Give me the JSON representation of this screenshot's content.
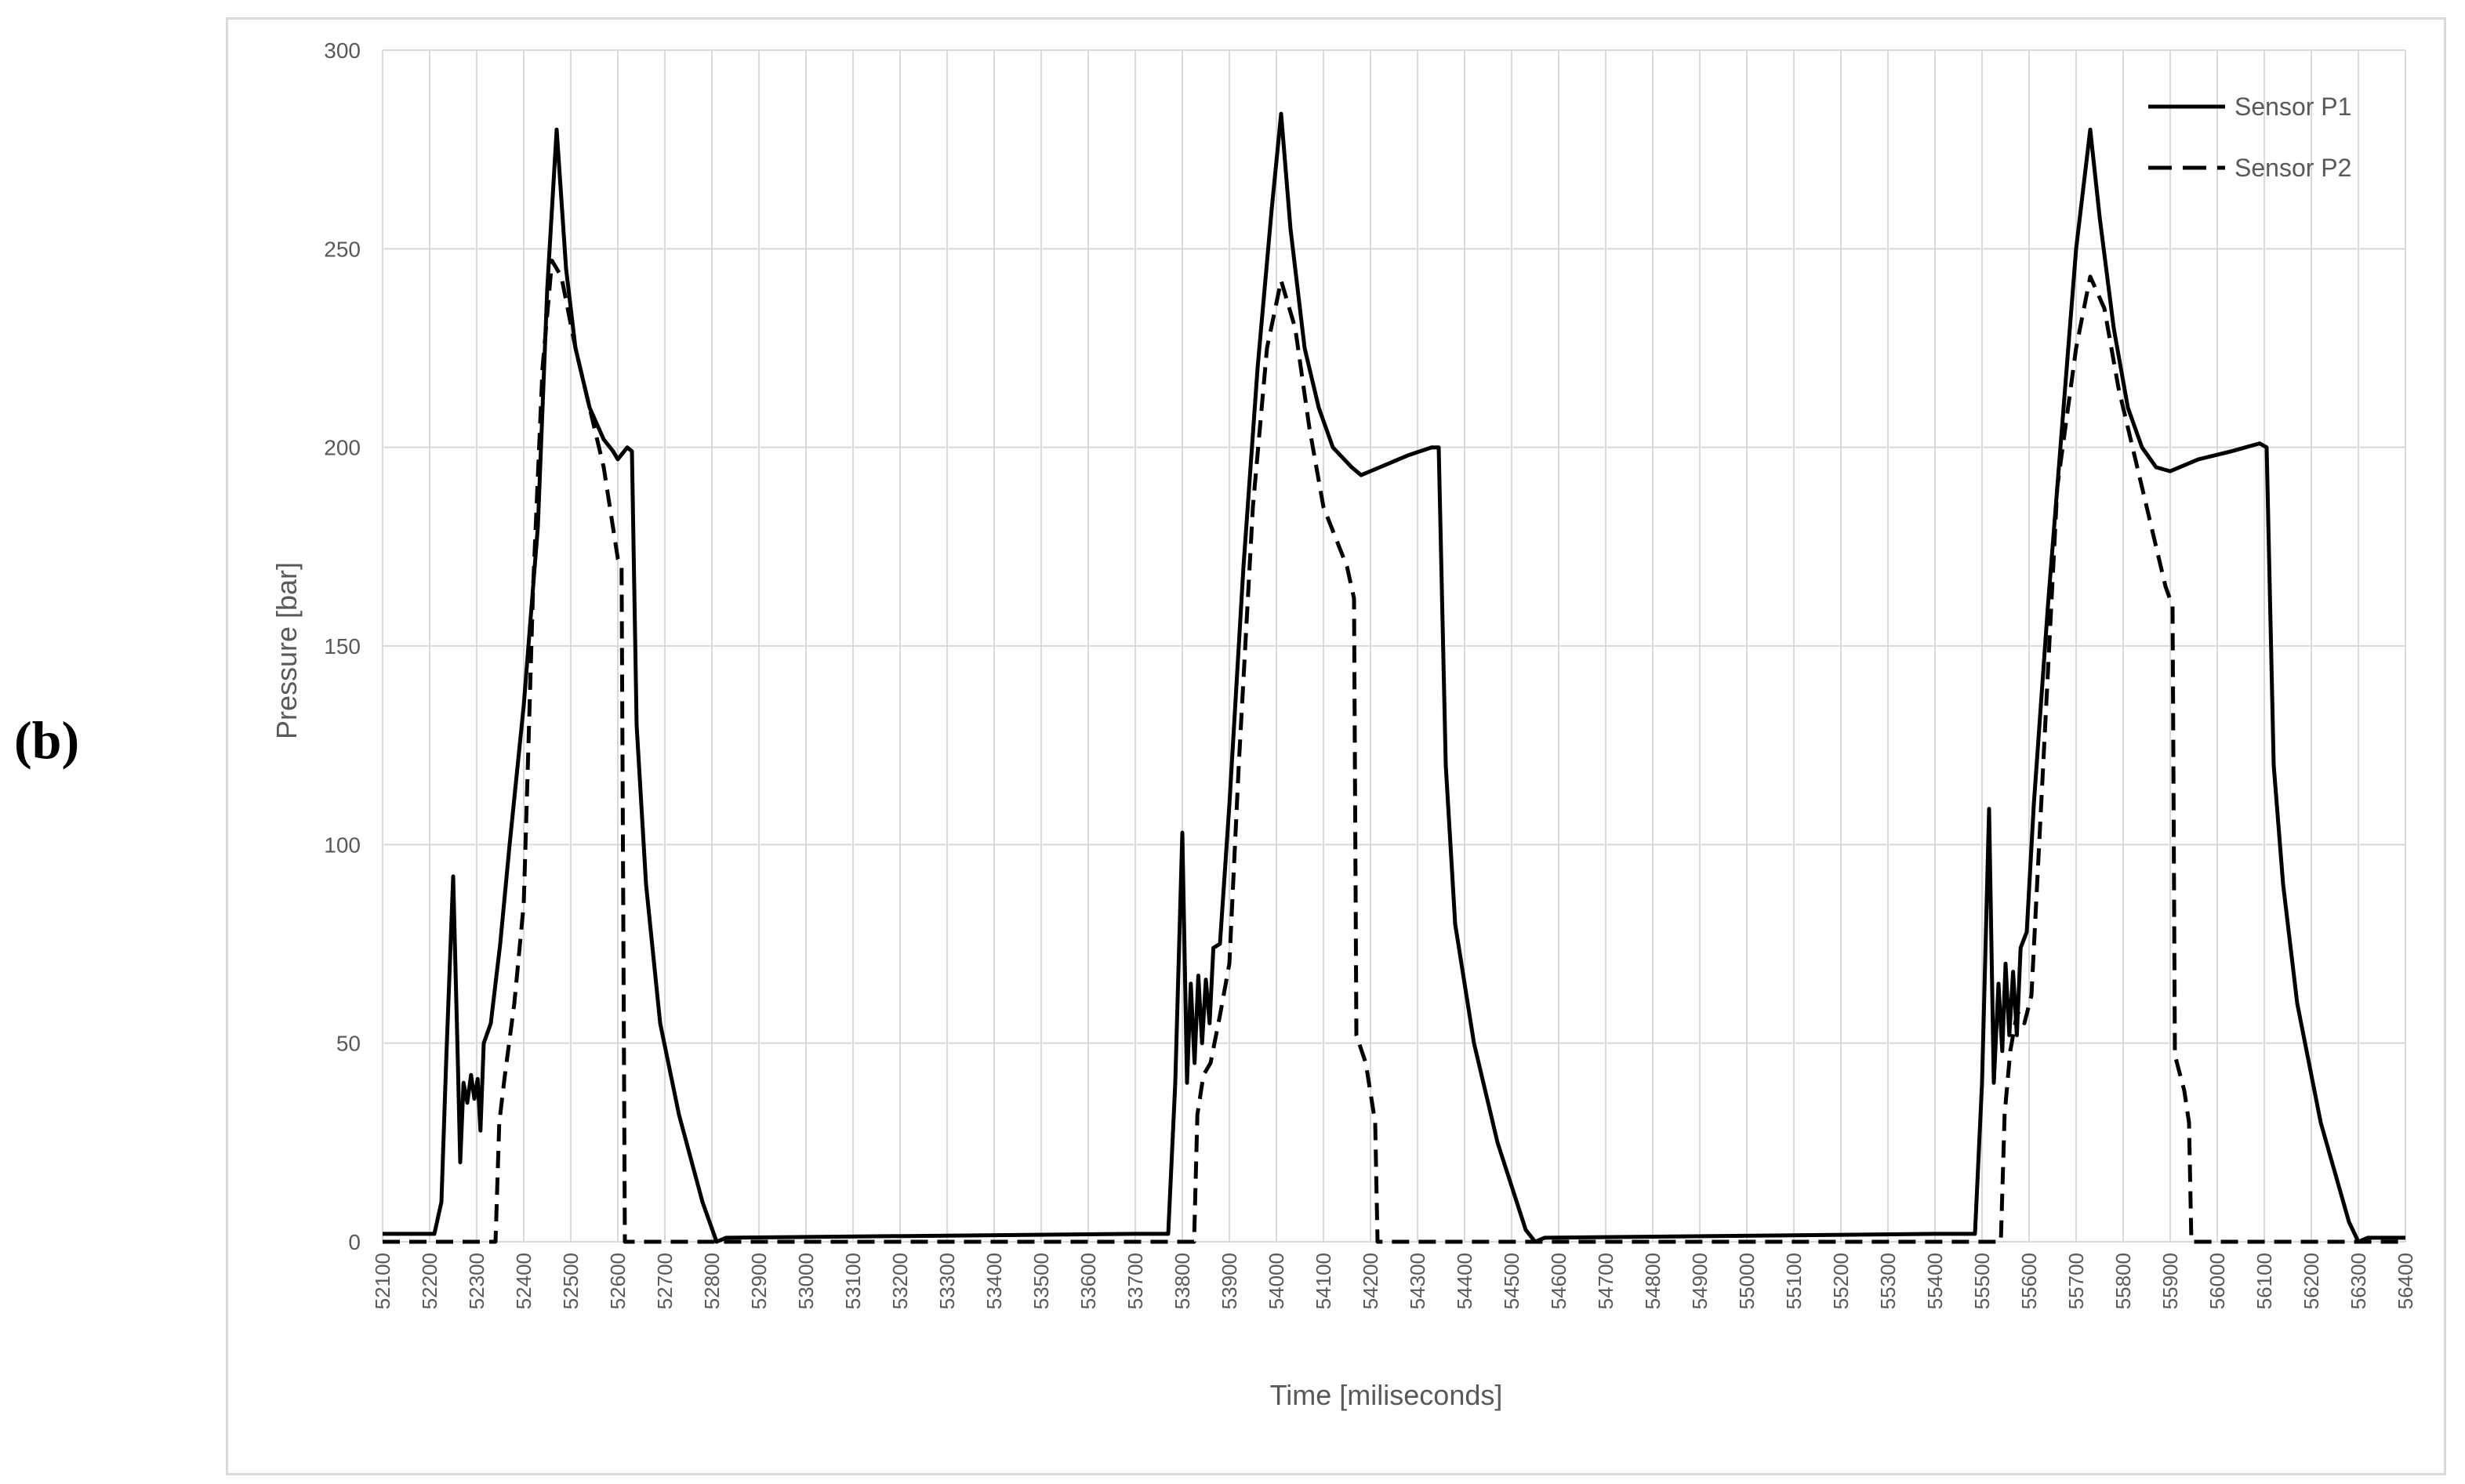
{
  "panel_label": "(b)",
  "chart_data": {
    "type": "line",
    "xlabel": "Time [miliseconds]",
    "ylabel": "Pressure [bar]",
    "xlim": [
      52100,
      56400
    ],
    "ylim": [
      0,
      300
    ],
    "yticks": [
      0,
      50,
      100,
      150,
      200,
      250,
      300
    ],
    "xticks": [
      52100,
      52200,
      52300,
      52400,
      52500,
      52600,
      52700,
      52800,
      52900,
      53000,
      53100,
      53200,
      53300,
      53400,
      53500,
      53600,
      53700,
      53800,
      53900,
      54000,
      54100,
      54200,
      54300,
      54400,
      54500,
      54600,
      54700,
      54800,
      54900,
      55000,
      55100,
      55200,
      55300,
      55400,
      55500,
      55600,
      55700,
      55800,
      55900,
      56000,
      56100,
      56200,
      56300,
      56400
    ],
    "grid": true,
    "legend_position": "top-right",
    "series": [
      {
        "name": "Sensor P1",
        "style": "solid",
        "color": "#000000",
        "points": [
          [
            52100,
            2
          ],
          [
            52210,
            2
          ],
          [
            52225,
            10
          ],
          [
            52235,
            45
          ],
          [
            52250,
            92
          ],
          [
            52260,
            45
          ],
          [
            52265,
            20
          ],
          [
            52272,
            40
          ],
          [
            52280,
            35
          ],
          [
            52288,
            42
          ],
          [
            52295,
            36
          ],
          [
            52302,
            41
          ],
          [
            52308,
            28
          ],
          [
            52315,
            50
          ],
          [
            52330,
            55
          ],
          [
            52350,
            75
          ],
          [
            52370,
            100
          ],
          [
            52400,
            135
          ],
          [
            52430,
            180
          ],
          [
            52450,
            240
          ],
          [
            52470,
            280
          ],
          [
            52490,
            245
          ],
          [
            52510,
            225
          ],
          [
            52540,
            210
          ],
          [
            52570,
            202
          ],
          [
            52590,
            199
          ],
          [
            52600,
            197
          ],
          [
            52620,
            200
          ],
          [
            52630,
            199
          ],
          [
            52640,
            130
          ],
          [
            52660,
            90
          ],
          [
            52690,
            55
          ],
          [
            52730,
            32
          ],
          [
            52780,
            10
          ],
          [
            52810,
            0
          ],
          [
            52830,
            1
          ],
          [
            53700,
            2
          ],
          [
            53770,
            2
          ],
          [
            53785,
            40
          ],
          [
            53800,
            103
          ],
          [
            53810,
            40
          ],
          [
            53818,
            65
          ],
          [
            53826,
            45
          ],
          [
            53834,
            67
          ],
          [
            53842,
            50
          ],
          [
            53850,
            66
          ],
          [
            53858,
            55
          ],
          [
            53866,
            74
          ],
          [
            53880,
            75
          ],
          [
            53900,
            110
          ],
          [
            53930,
            170
          ],
          [
            53960,
            220
          ],
          [
            53990,
            260
          ],
          [
            54010,
            284
          ],
          [
            54030,
            255
          ],
          [
            54060,
            225
          ],
          [
            54090,
            210
          ],
          [
            54120,
            200
          ],
          [
            54160,
            195
          ],
          [
            54180,
            193
          ],
          [
            54220,
            195
          ],
          [
            54280,
            198
          ],
          [
            54330,
            200
          ],
          [
            54345,
            200
          ],
          [
            54360,
            120
          ],
          [
            54380,
            80
          ],
          [
            54420,
            50
          ],
          [
            54470,
            25
          ],
          [
            54530,
            3
          ],
          [
            54550,
            0
          ],
          [
            54570,
            1
          ],
          [
            55400,
            2
          ],
          [
            55485,
            2
          ],
          [
            55500,
            40
          ],
          [
            55515,
            109
          ],
          [
            55525,
            40
          ],
          [
            55535,
            65
          ],
          [
            55543,
            48
          ],
          [
            55550,
            70
          ],
          [
            55558,
            52
          ],
          [
            55566,
            68
          ],
          [
            55574,
            52
          ],
          [
            55582,
            74
          ],
          [
            55595,
            78
          ],
          [
            55610,
            110
          ],
          [
            55640,
            160
          ],
          [
            55670,
            205
          ],
          [
            55700,
            250
          ],
          [
            55730,
            280
          ],
          [
            55750,
            258
          ],
          [
            55780,
            230
          ],
          [
            55810,
            210
          ],
          [
            55840,
            200
          ],
          [
            55870,
            195
          ],
          [
            55900,
            194
          ],
          [
            55960,
            197
          ],
          [
            56030,
            199
          ],
          [
            56090,
            201
          ],
          [
            56105,
            200
          ],
          [
            56120,
            120
          ],
          [
            56140,
            90
          ],
          [
            56170,
            60
          ],
          [
            56220,
            30
          ],
          [
            56280,
            5
          ],
          [
            56300,
            0
          ],
          [
            56320,
            1
          ],
          [
            56400,
            1
          ]
        ]
      },
      {
        "name": "Sensor P2",
        "style": "dashed",
        "color": "#000000",
        "points": [
          [
            52100,
            0
          ],
          [
            52340,
            0
          ],
          [
            52348,
            30
          ],
          [
            52360,
            42
          ],
          [
            52380,
            60
          ],
          [
            52400,
            85
          ],
          [
            52420,
            165
          ],
          [
            52440,
            220
          ],
          [
            52460,
            247
          ],
          [
            52480,
            243
          ],
          [
            52510,
            225
          ],
          [
            52540,
            210
          ],
          [
            52570,
            195
          ],
          [
            52600,
            172
          ],
          [
            52608,
            170
          ],
          [
            52615,
            0
          ],
          [
            52830,
            0
          ],
          [
            53700,
            0
          ],
          [
            53825,
            0
          ],
          [
            53832,
            32
          ],
          [
            53845,
            42
          ],
          [
            53860,
            45
          ],
          [
            53880,
            57
          ],
          [
            53900,
            70
          ],
          [
            53920,
            120
          ],
          [
            53950,
            185
          ],
          [
            53980,
            225
          ],
          [
            54010,
            242
          ],
          [
            54040,
            230
          ],
          [
            54070,
            205
          ],
          [
            54100,
            185
          ],
          [
            54150,
            170
          ],
          [
            54165,
            162
          ],
          [
            54170,
            52
          ],
          [
            54190,
            45
          ],
          [
            54210,
            30
          ],
          [
            54215,
            0
          ],
          [
            54570,
            0
          ],
          [
            55400,
            0
          ],
          [
            55540,
            0
          ],
          [
            55548,
            32
          ],
          [
            55560,
            48
          ],
          [
            55575,
            58
          ],
          [
            55590,
            55
          ],
          [
            55605,
            62
          ],
          [
            55630,
            120
          ],
          [
            55660,
            190
          ],
          [
            55700,
            225
          ],
          [
            55730,
            243
          ],
          [
            55760,
            235
          ],
          [
            55790,
            215
          ],
          [
            55820,
            200
          ],
          [
            55850,
            185
          ],
          [
            55890,
            165
          ],
          [
            55905,
            160
          ],
          [
            55910,
            47
          ],
          [
            55930,
            38
          ],
          [
            55940,
            30
          ],
          [
            55945,
            0
          ],
          [
            56400,
            0
          ]
        ]
      }
    ]
  }
}
